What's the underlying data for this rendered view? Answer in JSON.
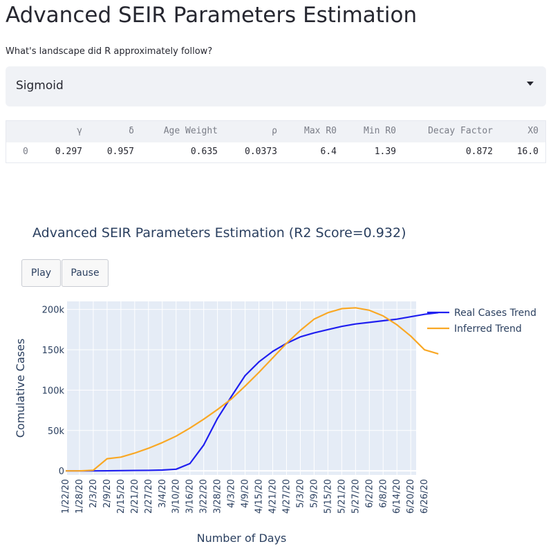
{
  "page": {
    "title": "Advanced SEIR Parameters Estimation",
    "question": "What's landscape did R approximately follow?"
  },
  "select": {
    "value": "Sigmoid"
  },
  "table": {
    "columns": [
      "γ",
      "δ",
      "Age Weight",
      "ρ",
      "Max R0",
      "Min R0",
      "Decay Factor",
      "X0"
    ],
    "rows": [
      {
        "index": "0",
        "values": [
          "0.297",
          "0.957",
          "0.635",
          "0.0373",
          "6.4",
          "1.39",
          "0.872",
          "16.0"
        ]
      }
    ]
  },
  "controls": {
    "play_label": "Play",
    "pause_label": "Pause"
  },
  "colors": {
    "real": "#1f1ff0",
    "inferred": "#f9a825",
    "plot_bg": "#e5ecf6",
    "text": "#2a3f5f"
  },
  "chart_data": {
    "type": "line",
    "title": "Advanced SEIR Parameters Estimation (R2 Score=0.932)",
    "xlabel": "Number of Days",
    "ylabel": "Comulative Cases",
    "ylim": [
      -5000,
      210000
    ],
    "yticks": [
      0,
      50000,
      100000,
      150000,
      200000
    ],
    "ytick_labels": [
      "0",
      "50k",
      "100k",
      "150k",
      "200k"
    ],
    "xtick_labels": [
      "1/22/20",
      "1/28/20",
      "2/3/20",
      "2/9/20",
      "2/15/20",
      "2/21/20",
      "2/27/20",
      "3/4/20",
      "3/10/20",
      "3/16/20",
      "3/22/20",
      "3/28/20",
      "4/3/20",
      "4/9/20",
      "4/15/20",
      "4/21/20",
      "4/27/20",
      "5/3/20",
      "5/9/20",
      "5/15/20",
      "5/21/20",
      "5/27/20",
      "6/2/20",
      "6/8/20",
      "6/14/20",
      "6/20/20",
      "6/26/20"
    ],
    "x": [
      "1/22/20",
      "1/28/20",
      "2/3/20",
      "2/9/20",
      "2/15/20",
      "2/21/20",
      "2/27/20",
      "3/4/20",
      "3/10/20",
      "3/16/20",
      "3/22/20",
      "3/28/20",
      "4/3/20",
      "4/9/20",
      "4/15/20",
      "4/21/20",
      "4/27/20",
      "5/3/20",
      "5/9/20",
      "5/15/20",
      "5/21/20",
      "5/27/20",
      "6/2/20",
      "6/8/20",
      "6/14/20",
      "6/20/20",
      "6/26/20",
      "7/2/20"
    ],
    "legend_position": "top-right",
    "grid": true,
    "series": [
      {
        "name": "Real Cases Trend",
        "values": [
          0,
          0,
          0,
          100,
          300,
          500,
          600,
          1000,
          2000,
          9000,
          32000,
          65000,
          92000,
          118000,
          135000,
          148000,
          158000,
          166000,
          171000,
          175000,
          179000,
          182000,
          184000,
          186000,
          188000,
          191000,
          194000,
          196000
        ]
      },
      {
        "name": "Inferred Trend",
        "values": [
          0,
          0,
          800,
          15000,
          17000,
          22000,
          28000,
          35000,
          43000,
          53000,
          64000,
          76000,
          89000,
          105000,
          122000,
          140000,
          158000,
          174000,
          188000,
          196000,
          201000,
          202000,
          199000,
          192000,
          181000,
          167000,
          150000,
          145000
        ]
      }
    ]
  }
}
